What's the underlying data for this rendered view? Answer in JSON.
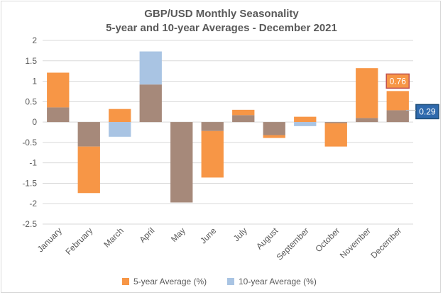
{
  "chart_data": {
    "type": "bar",
    "title_line1": "GBP/USD Monthly Seasonality",
    "title_line2": "5-year and 10-year Averages - December 2021",
    "categories": [
      "January",
      "February",
      "March",
      "April",
      "May",
      "June",
      "July",
      "August",
      "September",
      "October",
      "November",
      "December"
    ],
    "series": [
      {
        "name": "5-year Average (%)",
        "color": "#f79646",
        "values": [
          1.21,
          -1.74,
          0.32,
          0.92,
          -1.97,
          -1.36,
          0.3,
          -0.39,
          0.13,
          -0.6,
          1.32,
          0.76
        ]
      },
      {
        "name": "10-year Average (%)",
        "color": "#a9c4e3",
        "values": [
          0.36,
          -0.6,
          -0.36,
          1.73,
          -1.97,
          -0.22,
          0.17,
          -0.32,
          -0.1,
          -0.03,
          0.1,
          0.29
        ]
      }
    ],
    "overlap_color": "#a6897a",
    "ylim": [
      -2.5,
      2
    ],
    "yticks": [
      "2",
      "1.5",
      "1",
      "0.5",
      "0",
      "-0.5",
      "-1",
      "-1.5",
      "-2",
      "-2.5"
    ],
    "ytick_values": [
      2,
      1.5,
      1,
      0.5,
      0,
      -0.5,
      -1,
      -1.5,
      -2,
      -2.5
    ],
    "grid": "horizontal",
    "legend_position": "bottom",
    "annotations": [
      {
        "text": "0.76",
        "category": "December",
        "series": "5-year Average (%)",
        "fill": "#f79646",
        "border": "#c0504d"
      },
      {
        "text": "0.29",
        "category": "December",
        "series": "10-year Average (%)",
        "fill": "#2f6aad",
        "border": "#1f4e79"
      }
    ]
  }
}
